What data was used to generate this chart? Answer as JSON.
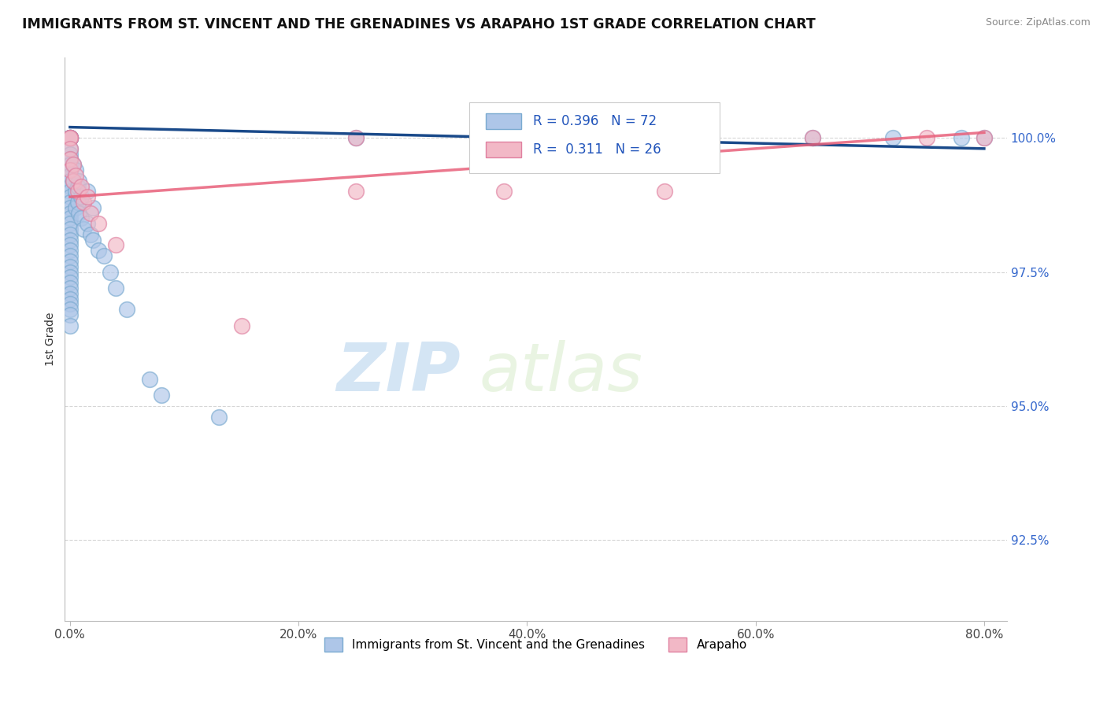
{
  "title": "IMMIGRANTS FROM ST. VINCENT AND THE GRENADINES VS ARAPAHO 1ST GRADE CORRELATION CHART",
  "source": "Source: ZipAtlas.com",
  "ylabel": "1st Grade",
  "xmin": -0.005,
  "xmax": 0.82,
  "ymin": 91.0,
  "ymax": 101.5,
  "ytick_labels": [
    "92.5%",
    "95.0%",
    "97.5%",
    "100.0%"
  ],
  "ytick_values": [
    92.5,
    95.0,
    97.5,
    100.0
  ],
  "xtick_labels": [
    "0.0%",
    "20.0%",
    "40.0%",
    "60.0%",
    "80.0%"
  ],
  "xtick_values": [
    0.0,
    0.2,
    0.4,
    0.6,
    0.8
  ],
  "blue_color": "#aec6e8",
  "pink_color": "#f2b8c6",
  "blue_edge_color": "#7aaad0",
  "pink_edge_color": "#e080a0",
  "blue_line_color": "#1a4a8a",
  "pink_line_color": "#e8607a",
  "legend_blue_label": "Immigrants from St. Vincent and the Grenadines",
  "legend_pink_label": "Arapaho",
  "R_blue": 0.396,
  "N_blue": 72,
  "R_pink": 0.311,
  "N_pink": 26,
  "watermark_zip": "ZIP",
  "watermark_atlas": "atlas",
  "blue_scatter_x": [
    0.0,
    0.0,
    0.0,
    0.0,
    0.0,
    0.0,
    0.0,
    0.0,
    0.0,
    0.0,
    0.0,
    0.0,
    0.0,
    0.0,
    0.0,
    0.0,
    0.0,
    0.0,
    0.0,
    0.0,
    0.0,
    0.0,
    0.0,
    0.0,
    0.0,
    0.0,
    0.0,
    0.0,
    0.0,
    0.0,
    0.0,
    0.0,
    0.0,
    0.0,
    0.0,
    0.0,
    0.0,
    0.0,
    0.0,
    0.0,
    0.003,
    0.003,
    0.005,
    0.005,
    0.005,
    0.007,
    0.007,
    0.008,
    0.008,
    0.01,
    0.01,
    0.012,
    0.015,
    0.015,
    0.018,
    0.02,
    0.02,
    0.025,
    0.03,
    0.035,
    0.04,
    0.05,
    0.07,
    0.08,
    0.13,
    0.25,
    0.38,
    0.52,
    0.65,
    0.72,
    0.78,
    0.8
  ],
  "blue_scatter_y": [
    100.0,
    100.0,
    100.0,
    100.0,
    100.0,
    100.0,
    100.0,
    99.8,
    99.7,
    99.6,
    99.5,
    99.4,
    99.3,
    99.2,
    99.1,
    99.0,
    98.9,
    98.8,
    98.7,
    98.6,
    98.5,
    98.4,
    98.3,
    98.2,
    98.1,
    98.0,
    97.9,
    97.8,
    97.7,
    97.6,
    97.5,
    97.4,
    97.3,
    97.2,
    97.1,
    97.0,
    96.9,
    96.8,
    96.7,
    96.5,
    99.5,
    99.2,
    99.4,
    99.0,
    98.7,
    99.1,
    98.8,
    99.2,
    98.6,
    98.9,
    98.5,
    98.3,
    99.0,
    98.4,
    98.2,
    98.7,
    98.1,
    97.9,
    97.8,
    97.5,
    97.2,
    96.8,
    95.5,
    95.2,
    94.8,
    100.0,
    100.0,
    100.0,
    100.0,
    100.0,
    100.0,
    100.0
  ],
  "pink_scatter_x": [
    0.0,
    0.0,
    0.0,
    0.0,
    0.0,
    0.0,
    0.003,
    0.003,
    0.005,
    0.007,
    0.01,
    0.012,
    0.015,
    0.018,
    0.025,
    0.04,
    0.15,
    0.25,
    0.38,
    0.52,
    0.65,
    0.75,
    0.25,
    0.38,
    0.52,
    0.8
  ],
  "pink_scatter_y": [
    100.0,
    100.0,
    100.0,
    99.8,
    99.6,
    99.4,
    99.5,
    99.2,
    99.3,
    99.0,
    99.1,
    98.8,
    98.9,
    98.6,
    98.4,
    98.0,
    96.5,
    100.0,
    100.0,
    100.0,
    100.0,
    100.0,
    99.0,
    99.0,
    99.0,
    100.0
  ],
  "blue_trendline": [
    0.0,
    0.8,
    100.2,
    99.8
  ],
  "pink_trendline": [
    0.0,
    0.8,
    98.9,
    100.1
  ]
}
